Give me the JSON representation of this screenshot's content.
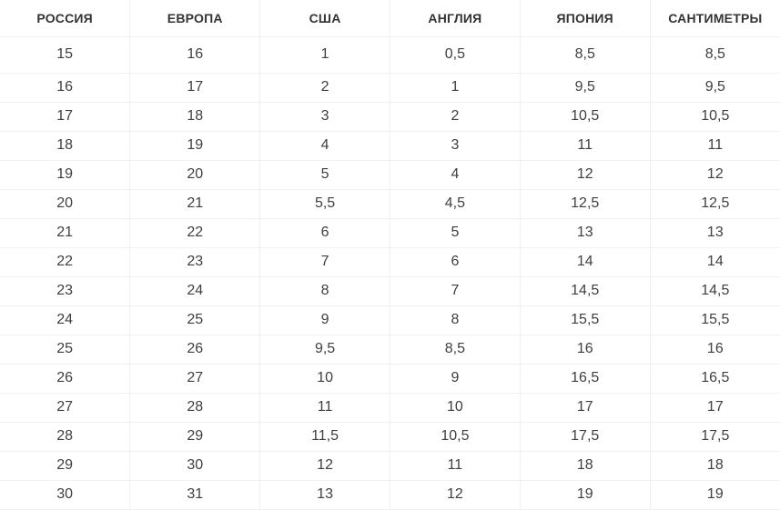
{
  "theme": {
    "background": "#ffffff",
    "border_color": "#f0f0f0",
    "header_text_color": "#333333",
    "cell_text_color": "#3f3f3f"
  },
  "chart_data": {
    "type": "table",
    "columns": [
      "РОССИЯ",
      "ЕВРОПА",
      "США",
      "АНГЛИЯ",
      "ЯПОНИЯ",
      "САНТИМЕТРЫ"
    ],
    "rows": [
      [
        "15",
        "16",
        "1",
        "0,5",
        "8,5",
        "8,5"
      ],
      [
        "16",
        "17",
        "2",
        "1",
        "9,5",
        "9,5"
      ],
      [
        "17",
        "18",
        "3",
        "2",
        "10,5",
        "10,5"
      ],
      [
        "18",
        "19",
        "4",
        "3",
        "11",
        "11"
      ],
      [
        "19",
        "20",
        "5",
        "4",
        "12",
        "12"
      ],
      [
        "20",
        "21",
        "5,5",
        "4,5",
        "12,5",
        "12,5"
      ],
      [
        "21",
        "22",
        "6",
        "5",
        "13",
        "13"
      ],
      [
        "22",
        "23",
        "7",
        "6",
        "14",
        "14"
      ],
      [
        "23",
        "24",
        "8",
        "7",
        "14,5",
        "14,5"
      ],
      [
        "24",
        "25",
        "9",
        "8",
        "15,5",
        "15,5"
      ],
      [
        "25",
        "26",
        "9,5",
        "8,5",
        "16",
        "16"
      ],
      [
        "26",
        "27",
        "10",
        "9",
        "16,5",
        "16,5"
      ],
      [
        "27",
        "28",
        "11",
        "10",
        "17",
        "17"
      ],
      [
        "28",
        "29",
        "11,5",
        "10,5",
        "17,5",
        "17,5"
      ],
      [
        "29",
        "30",
        "12",
        "11",
        "18",
        "18"
      ],
      [
        "30",
        "31",
        "13",
        "12",
        "19",
        "19"
      ]
    ]
  }
}
